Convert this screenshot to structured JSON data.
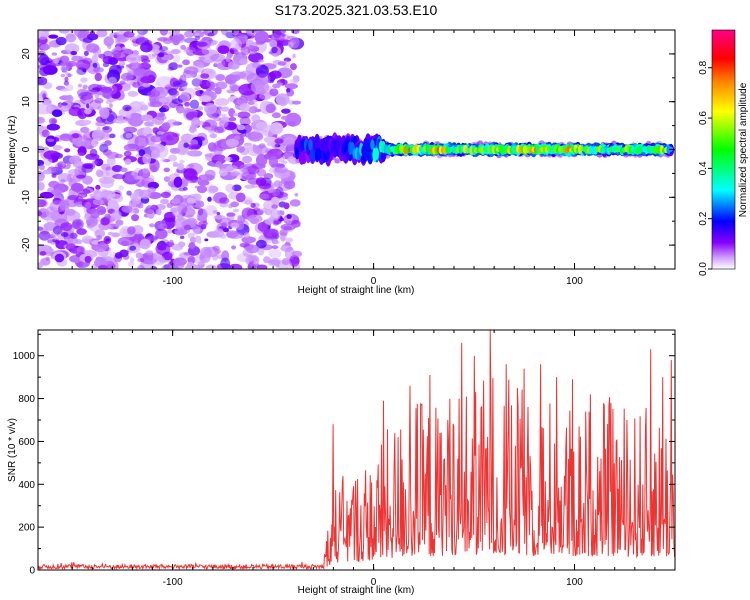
{
  "title": "S173.2025.321.03.53.E10",
  "chart_data": [
    {
      "type": "heatmap",
      "title": "S173.2025.321.03.53.E10",
      "xlabel": "Height of straight line (km)",
      "ylabel": "Frequency (Hz)",
      "xlim": [
        -167,
        150
      ],
      "ylim": [
        -25,
        25
      ],
      "x_ticks": [
        -100,
        0,
        100
      ],
      "x_tick_labels": [
        "-100",
        "0",
        "100"
      ],
      "y_ticks": [
        -20,
        -10,
        0,
        10,
        20
      ],
      "y_tick_labels": [
        "-20",
        "-10",
        "0",
        "10",
        "20"
      ],
      "noise_region_x": [
        -167,
        -38
      ],
      "signal_start_x": -38,
      "signal_center_freq": 0,
      "signal_band_x": [
        -38,
        -32,
        -26,
        -20,
        -14,
        -8,
        0,
        8,
        16,
        24,
        32,
        40,
        48,
        56,
        64,
        72,
        80,
        88,
        96,
        104,
        112,
        120,
        128,
        136,
        144,
        148
      ],
      "signal_band_amp": [
        0.18,
        0.22,
        0.25,
        0.2,
        0.22,
        0.28,
        0.3,
        0.45,
        0.78,
        0.55,
        0.7,
        0.5,
        0.6,
        0.55,
        0.62,
        0.65,
        0.68,
        0.55,
        0.75,
        0.6,
        0.5,
        0.45,
        0.55,
        0.5,
        0.62,
        0.4
      ],
      "colorbar": {
        "label": "Normalized spectral amplitude",
        "range": [
          0,
          0.95
        ],
        "ticks": [
          0.0,
          0.2,
          0.4,
          0.6,
          0.8
        ],
        "tick_labels": [
          "0.0",
          "0.2",
          "0.4",
          "0.6",
          "0.8"
        ],
        "colors": [
          "#ffffff",
          "#cc99ff",
          "#8800ff",
          "#0000ff",
          "#00ffff",
          "#00ff00",
          "#ffff00",
          "#ff8800",
          "#ff0000",
          "#ff0088"
        ]
      }
    },
    {
      "type": "line",
      "xlabel": "Height of straight line (km)",
      "ylabel": "SNR (10 * v/v)",
      "xlim": [
        -167,
        150
      ],
      "ylim": [
        0,
        1120
      ],
      "x_ticks": [
        -100,
        0,
        100
      ],
      "x_tick_labels": [
        "-100",
        "0",
        "100"
      ],
      "y_ticks": [
        0,
        200,
        400,
        600,
        800,
        1000
      ],
      "y_tick_labels": [
        "0",
        "200",
        "400",
        "600",
        "800",
        "1000"
      ],
      "line_color": "#ee3333",
      "series": [
        {
          "name": "SNR",
          "noise_level_x": [
            -167,
            -25
          ],
          "noise_level_y": [
            5,
            40
          ],
          "envelope_x": [
            -25,
            -20,
            -10,
            0,
            10,
            20,
            30,
            40,
            50,
            60,
            70,
            80,
            90,
            100,
            110,
            120,
            130,
            140,
            150
          ],
          "envelope_mean": [
            40,
            220,
            260,
            300,
            380,
            450,
            420,
            480,
            470,
            520,
            480,
            430,
            450,
            420,
            430,
            440,
            410,
            420,
            400
          ],
          "peak_x": [
            -20,
            5,
            18,
            28,
            37,
            44,
            50,
            58,
            66,
            75,
            83,
            91,
            99,
            108,
            118,
            126,
            138,
            144,
            148
          ],
          "peak_y": [
            680,
            790,
            860,
            910,
            700,
            1060,
            1000,
            1120,
            960,
            940,
            960,
            900,
            890,
            820,
            780,
            700,
            1030,
            900,
            980
          ]
        }
      ]
    }
  ]
}
